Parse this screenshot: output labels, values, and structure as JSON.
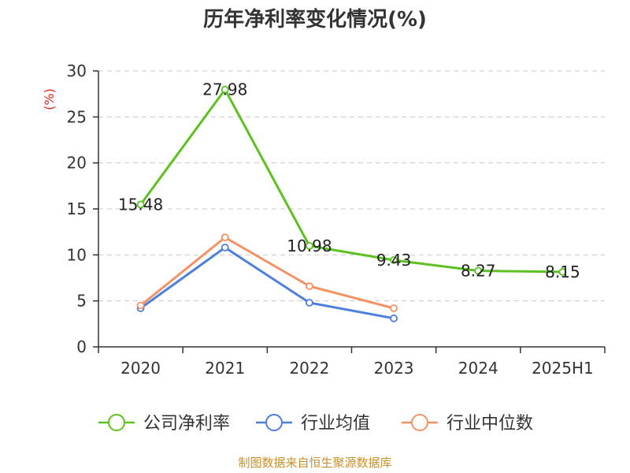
{
  "chart_data": {
    "type": "line",
    "title": "历年净利率变化情况(%)",
    "ylabel": "(%)",
    "categories": [
      "2020",
      "2021",
      "2022",
      "2023",
      "2024",
      "2025H1"
    ],
    "ylim": [
      0,
      30
    ],
    "yticks": [
      0,
      5,
      10,
      15,
      20,
      25,
      30
    ],
    "grid": true,
    "legend_position": "bottom",
    "series": [
      {
        "name": "公司净利率",
        "color": "#5cc121",
        "values": [
          15.48,
          27.98,
          10.98,
          9.43,
          8.27,
          8.15
        ],
        "labels": [
          "15.48",
          "27.98",
          "10.98",
          "9.43",
          "8.27",
          "8.15"
        ]
      },
      {
        "name": "行业均值",
        "color": "#4d7fdc",
        "values": [
          4.2,
          10.8,
          4.8,
          3.1,
          null,
          null
        ]
      },
      {
        "name": "行业中位数",
        "color": "#f39264",
        "values": [
          4.5,
          11.9,
          6.6,
          4.2,
          null,
          null
        ]
      }
    ]
  },
  "source_text": "制图数据来自恒生聚源数据库"
}
